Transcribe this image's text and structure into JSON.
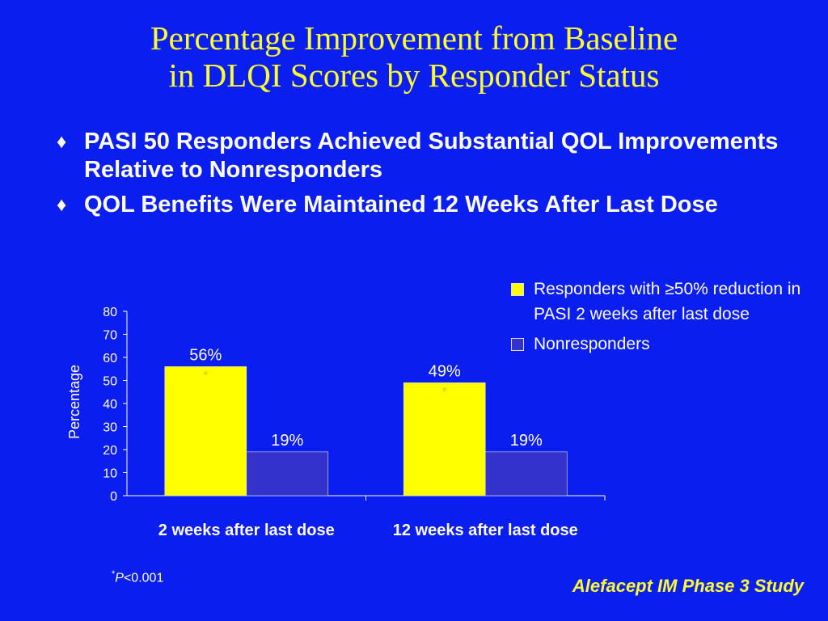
{
  "slide": {
    "title_line1": "Percentage Improvement from Baseline",
    "title_line2": "in DLQI Scores by Responder Status",
    "bullet_glyph": "♦",
    "bullets": [
      {
        "text": "PASI 50 Responders Achieved Substantial QOL Improvements Relative to Nonresponders"
      },
      {
        "text": "QOL Benefits Were Maintained 12 Weeks After Last Dose"
      }
    ],
    "legend": {
      "responders": "Responders with ≥50% reduction in PASI 2 weeks after last dose",
      "nonresponders": "Nonresponders"
    },
    "footnote": {
      "star": "*",
      "p": "P",
      "rest": "<0.001"
    },
    "source": "Alefacept IM Phase 3 Study"
  },
  "chart_data": {
    "type": "bar",
    "categories": [
      "2 weeks after last dose",
      "12 weeks after last dose"
    ],
    "series": [
      {
        "name": "Responders with ≥50% reduction in PASI 2 weeks after last dose",
        "values": [
          56,
          49
        ],
        "labels": [
          "56%",
          "49%"
        ],
        "color": "#ffff00",
        "marker": "*"
      },
      {
        "name": "Nonresponders",
        "values": [
          19,
          19
        ],
        "labels": [
          "19%",
          "19%"
        ],
        "color": "#3333cc"
      }
    ],
    "ylabel": "Percentage",
    "ylim": [
      0,
      80
    ],
    "yticks": [
      0,
      10,
      20,
      30,
      40,
      50,
      60,
      70,
      80
    ],
    "grid": false,
    "legend_position": "top-right"
  }
}
